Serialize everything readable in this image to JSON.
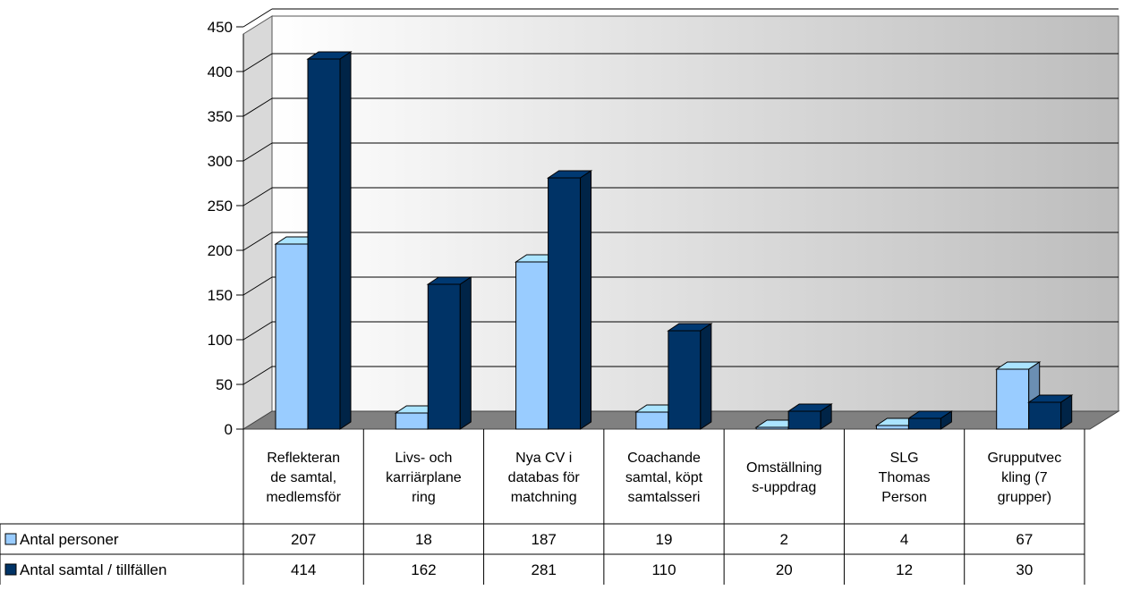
{
  "chart_data": {
    "type": "bar",
    "title": "",
    "xlabel": "",
    "ylabel": "",
    "ylim": [
      0,
      450
    ],
    "yticks": [
      0,
      50,
      100,
      150,
      200,
      250,
      300,
      350,
      400,
      450
    ],
    "grid": true,
    "three_d": true,
    "legend_placement": "data-table",
    "categories": [
      [
        "Reflekteran",
        "de samtal,",
        "medlemsför"
      ],
      [
        "Livs- och",
        "karriärplane",
        "ring"
      ],
      [
        "Nya CV i",
        "databas för",
        "matchning"
      ],
      [
        "Coachande",
        "samtal, köpt",
        "samtalsseri"
      ],
      [
        "Omställning",
        "s-uppdrag"
      ],
      [
        "SLG",
        "Thomas",
        "Person"
      ],
      [
        "Grupputvec",
        "kling (7",
        "grupper)"
      ]
    ],
    "series": [
      {
        "name": "Antal personer",
        "color": "#99ccff",
        "values": [
          207,
          18,
          187,
          19,
          2,
          4,
          67
        ]
      },
      {
        "name": "Antal samtal / tillfällen",
        "color": "#003366",
        "values": [
          414,
          162,
          281,
          110,
          20,
          12,
          30
        ]
      }
    ]
  }
}
